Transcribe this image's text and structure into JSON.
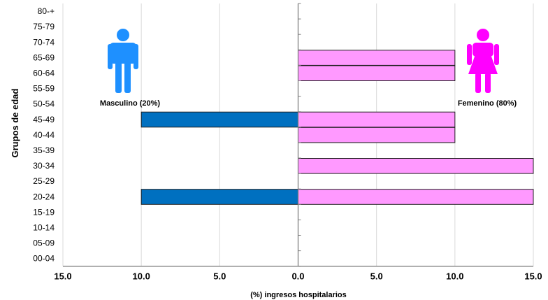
{
  "chart_data": {
    "type": "bar",
    "orientation": "horizontal",
    "subtype": "population-pyramid",
    "categories": [
      "00-04",
      "05-09",
      "10-14",
      "15-19",
      "20-24",
      "25-29",
      "30-34",
      "35-39",
      "40-44",
      "45-49",
      "50-54",
      "55-59",
      "60-64",
      "65-69",
      "70-74",
      "75-79",
      "80-+"
    ],
    "series": [
      {
        "name": "Masculino (20%)",
        "color": "#0070C0",
        "direction": "left",
        "values": [
          0,
          0,
          0,
          0,
          10,
          0,
          0,
          0,
          0,
          10,
          0,
          0,
          0,
          0,
          0,
          0,
          0
        ]
      },
      {
        "name": "Femenino (80%)",
        "color": "#FF99FF",
        "direction": "right",
        "values": [
          0,
          0,
          0,
          0,
          15,
          0,
          15,
          0,
          10,
          10,
          0,
          0,
          10,
          10,
          0,
          0,
          0
        ]
      }
    ],
    "xlabel": "(%) ingresos hospitalarios",
    "ylabel": "Grupos de edad",
    "xlim": [
      -15,
      15
    ],
    "x_ticks": [
      -15,
      -10,
      -5,
      0,
      5,
      10,
      15
    ],
    "x_tick_labels": [
      "15.0",
      "10.0",
      "5.0",
      "0.0",
      "5.0",
      "10.0",
      "15.0"
    ],
    "grid": "vertical",
    "legend": "icons above bars (male left, female right)"
  },
  "icons": {
    "male": "male-person-icon",
    "female": "female-person-icon",
    "male_color": "#1E90FF",
    "female_color": "#FF00FF"
  }
}
